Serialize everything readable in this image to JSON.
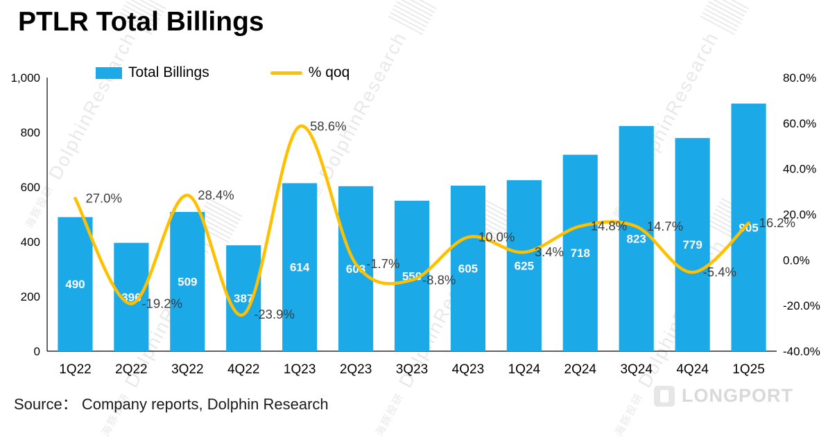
{
  "title": "PTLR Total Billings",
  "legend": {
    "bars": "Total Billings",
    "line": "% qoq"
  },
  "source": "Source： Company reports, Dolphin Research",
  "watermark": {
    "zh": "海豚投研",
    "en": "DolphinResearch"
  },
  "brand": "LONGPORT",
  "colors": {
    "bar": "#1CA9E8",
    "line": "#FFC000",
    "bar_label": "#FFFFFF",
    "line_label": "#3B3B3B",
    "axis": "#000000"
  },
  "chart_data": {
    "type": "bar+line",
    "title": "PTLR Total Billings",
    "categories": [
      "1Q22",
      "2Q22",
      "3Q22",
      "4Q22",
      "1Q23",
      "2Q23",
      "3Q23",
      "4Q23",
      "1Q24",
      "2Q24",
      "3Q24",
      "4Q24",
      "1Q25"
    ],
    "series": [
      {
        "name": "Total Billings",
        "type": "bar",
        "axis": "left",
        "values": [
          490,
          396,
          509,
          387,
          614,
          603,
          550,
          605,
          625,
          718,
          823,
          779,
          905
        ],
        "labels": [
          "490",
          "396",
          "509",
          "387",
          "614",
          "603",
          "550",
          "605",
          "625",
          "718",
          "823",
          "779",
          "905"
        ]
      },
      {
        "name": "% qoq",
        "type": "line",
        "axis": "right",
        "values": [
          27.0,
          -19.2,
          28.4,
          -23.9,
          58.6,
          -1.7,
          -8.8,
          10.0,
          3.4,
          14.8,
          14.7,
          -5.4,
          16.2
        ],
        "labels": [
          "27.0%",
          "-19.2%",
          "28.4%",
          "-23.9%",
          "58.6%",
          "-1.7%",
          "-8.8%",
          "10.0%",
          "3.4%",
          "14.8%",
          "14.7%",
          "-5.4%",
          "16.2%"
        ]
      }
    ],
    "left_axis": {
      "min": 0,
      "max": 1000,
      "step": 200,
      "tick_labels": [
        "0",
        "200",
        "400",
        "600",
        "800",
        "1,000"
      ]
    },
    "right_axis": {
      "min": -40,
      "max": 80,
      "step": 20,
      "tick_labels": [
        "-40.0%",
        "-20.0%",
        "0.0%",
        "20.0%",
        "40.0%",
        "60.0%",
        "80.0%"
      ]
    },
    "grid": false,
    "legend_position": "top"
  }
}
